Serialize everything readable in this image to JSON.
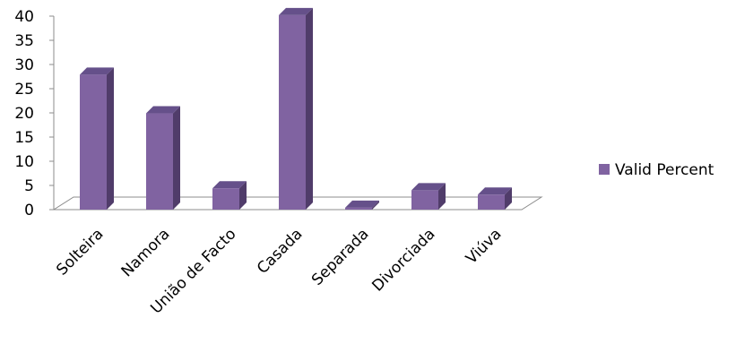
{
  "chart_data": {
    "type": "bar",
    "categories": [
      "Solteira",
      "Namora",
      "União de Facto",
      "Casada",
      "Separada",
      "Divorciada",
      "Viúva"
    ],
    "series": [
      {
        "name": "Valid Percent",
        "values": [
          27.9,
          19.9,
          4.4,
          40.2,
          0.4,
          4.0,
          3.1
        ]
      }
    ],
    "ylim": [
      0,
      40
    ],
    "yticks": [
      0,
      5,
      10,
      15,
      20,
      25,
      30,
      35,
      40
    ],
    "legend_position": "right",
    "grid": false,
    "colors": {
      "bar_front": "#8063A1",
      "bar_side": "#503C6A",
      "bar_top": "#65508A",
      "axis": "#8C8C8C",
      "legend_swatch": "#8063A1"
    }
  }
}
